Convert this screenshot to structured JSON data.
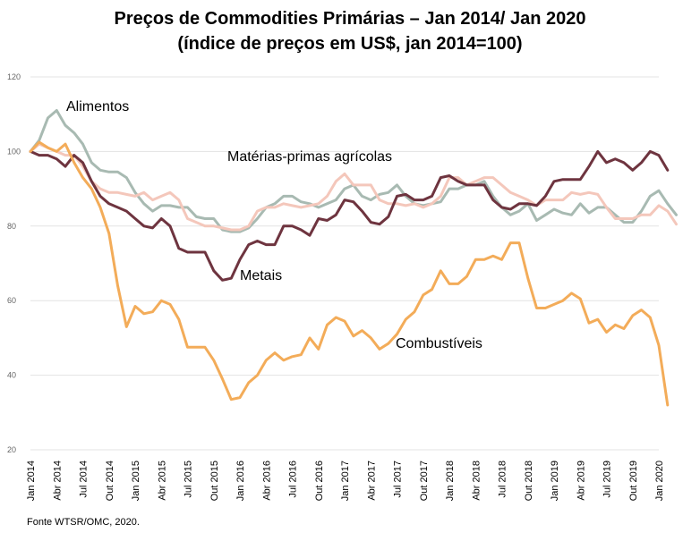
{
  "chart_data": {
    "type": "line",
    "title": "Preços de Commodities Primárias – Jan 2014/ Jan 2020",
    "subtitle": "(índice de preços em US$, jan 2014=100)",
    "source": "Fonte WTSR/OMC, 2020.",
    "ylim": [
      20,
      120
    ],
    "yticks": [
      20,
      40,
      60,
      80,
      100,
      120
    ],
    "xticks": [
      "Jan 2014",
      "Abr 2014",
      "Jul 2014",
      "Out 2014",
      "Jan 2015",
      "Abr 2015",
      "Jul 2015",
      "Out 2015",
      "Jan 2016",
      "Abr 2016",
      "Jul 2016",
      "Out 2016",
      "Jan 2017",
      "Abr 2017",
      "Jul 2017",
      "Out 2017",
      "Jan 2018",
      "Abr 2018",
      "Jul 2018",
      "Out 2018",
      "Jan 2019",
      "Abr 2019",
      "Jul 2019",
      "Out 2019",
      "Jan 2020"
    ],
    "grid": true,
    "series": [
      {
        "name": "Alimentos",
        "color": "#a8bab2",
        "values": [
          100,
          103,
          109,
          111,
          107,
          105,
          102,
          97,
          95,
          94.5,
          94.5,
          93,
          89,
          86,
          84,
          85.5,
          85.5,
          85,
          85,
          82.5,
          82,
          82,
          79,
          78.5,
          78.5,
          79.5,
          82,
          85,
          86,
          88,
          88,
          86.5,
          86,
          85,
          86,
          87,
          90,
          91,
          88,
          87,
          88.5,
          89,
          91,
          88,
          86,
          85.5,
          86,
          86.5,
          90,
          90,
          91,
          91,
          92,
          88,
          85,
          83,
          84,
          86,
          81.5,
          83,
          84.5,
          83.5,
          83,
          86,
          83.5,
          85,
          85,
          83,
          81,
          81,
          84,
          88,
          89.5,
          86,
          83
        ]
      },
      {
        "name": "Matérias-primas agrícolas",
        "color": "#f4c7bb",
        "values": [
          100,
          102,
          101,
          100,
          99,
          99,
          96,
          92,
          90,
          89,
          89,
          88.5,
          88,
          89,
          87,
          88,
          89,
          87,
          82,
          81,
          80,
          80,
          79.5,
          79,
          79,
          80,
          84,
          85,
          85,
          86,
          85.5,
          85,
          85.5,
          86,
          88,
          92,
          94,
          91,
          91,
          91,
          87,
          86,
          86,
          85.5,
          86,
          85,
          86,
          88,
          93,
          93,
          91,
          92,
          93,
          93,
          91,
          89,
          88,
          87,
          85.5,
          87,
          87,
          87,
          89,
          88.5,
          89,
          88.5,
          85,
          82,
          82,
          82,
          83,
          83,
          85.5,
          84,
          80.5
        ]
      },
      {
        "name": "Metais",
        "color": "#6e343f",
        "values": [
          100,
          99,
          99,
          98,
          96,
          99,
          97,
          92,
          88,
          86,
          85,
          84,
          82,
          80,
          79.5,
          82,
          80,
          74,
          73,
          73,
          73,
          68,
          65.5,
          66,
          71,
          75,
          76,
          75,
          75,
          80,
          80,
          79,
          77.5,
          82,
          81.5,
          83,
          87,
          86.5,
          84,
          81,
          80.5,
          82.5,
          88,
          88.5,
          87,
          87,
          88,
          93,
          93.5,
          92,
          91,
          91,
          91,
          87,
          85,
          84.5,
          86,
          86,
          85.5,
          88,
          92,
          92.5,
          92.5,
          92.5,
          96,
          100,
          97,
          98,
          97,
          95,
          97,
          100,
          99,
          95
        ]
      },
      {
        "name": "Combustíveis",
        "color": "#f3ac59",
        "values": [
          100,
          102.5,
          101,
          100,
          102,
          97,
          93,
          90,
          85,
          78,
          64,
          53,
          58.5,
          56.5,
          57,
          60,
          59,
          55,
          47.5,
          47.5,
          47.5,
          44,
          39,
          33.5,
          34,
          38,
          40,
          44,
          46,
          44,
          45,
          45.5,
          50,
          47,
          53.5,
          55.5,
          54.5,
          50.5,
          52,
          50,
          47,
          48.5,
          51,
          55,
          57,
          61.5,
          63,
          68,
          64.5,
          64.5,
          66.5,
          71,
          71,
          72,
          71,
          75.5,
          75.5,
          66,
          58,
          58,
          59,
          60,
          62,
          60.5,
          54,
          55,
          51.5,
          53.5,
          52.5,
          56,
          57.5,
          55.5,
          48,
          32
        ]
      }
    ],
    "series_labels": [
      "Alimentos",
      "Matérias-primas agrícolas",
      "Metais",
      "Combustíveis"
    ]
  }
}
